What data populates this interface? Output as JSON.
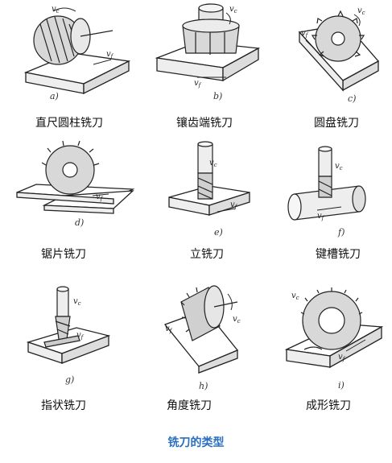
{
  "caption": "铣刀的类型",
  "items": [
    {
      "letter": "a)",
      "name": "直尺圆柱铣刀"
    },
    {
      "letter": "b)",
      "name": "镶齿端铣刀"
    },
    {
      "letter": "c)",
      "name": "圆盘铣刀"
    },
    {
      "letter": "d)",
      "name": "锯片铣刀"
    },
    {
      "letter": "e)",
      "name": "立铣刀"
    },
    {
      "letter": "f)",
      "name": "键槽铣刀"
    },
    {
      "letter": "g)",
      "name": "指状铣刀"
    },
    {
      "letter": "h)",
      "name": "角度铣刀"
    },
    {
      "letter": "i)",
      "name": "成形铣刀"
    }
  ],
  "labels": {
    "vc": "v",
    "vc_sub": "c",
    "vf": "v",
    "vf_sub": "f"
  }
}
